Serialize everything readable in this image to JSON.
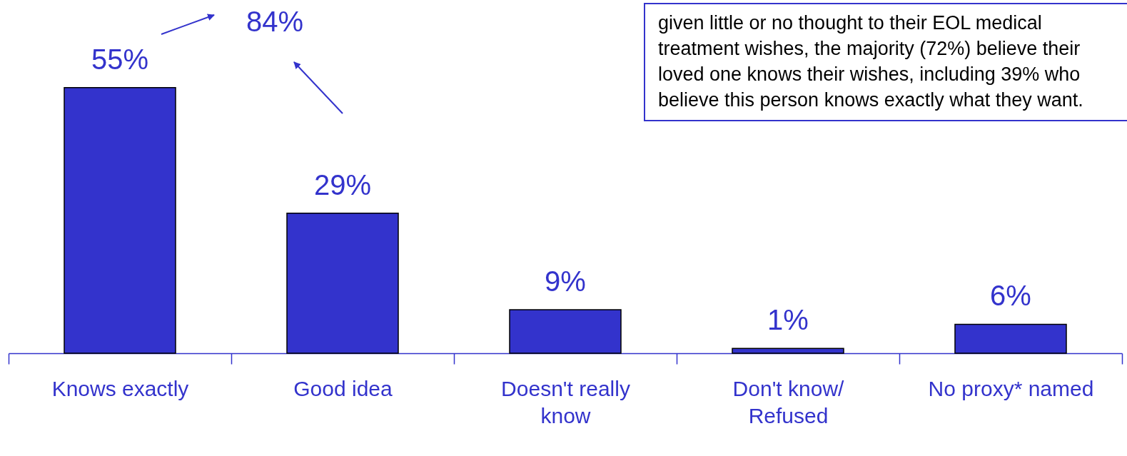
{
  "chart_data": {
    "type": "bar",
    "categories": [
      "Knows exactly",
      "Good idea",
      "Doesn't really know",
      "Don't know/ Refused",
      "No proxy* named"
    ],
    "values": [
      55,
      29,
      9,
      1,
      6
    ],
    "color": "#3333cc",
    "value_labels": [
      "55%",
      "29%",
      "9%",
      "1%",
      "6%"
    ],
    "annotations": [
      "84%",
      "given little or no thought to their EOL medical treatment wishes, the majority (72%) believe their loved one knows their wishes, including 39% who believe this person knows exactly what they want."
    ],
    "grid": false
  }
}
